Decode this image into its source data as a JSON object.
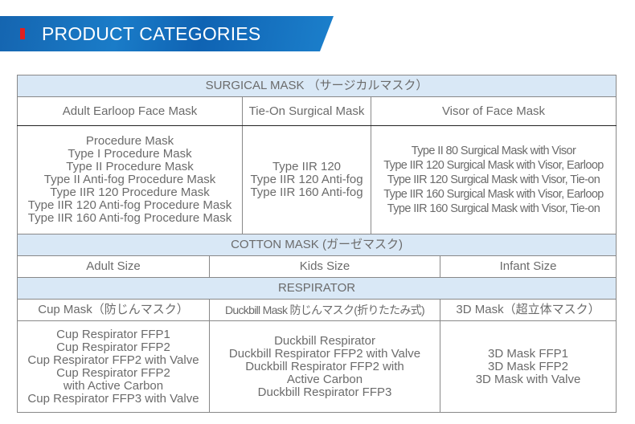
{
  "banner": {
    "title": "PRODUCT CATEGORIES",
    "accent": "#e02020",
    "background": "#1a72c0"
  },
  "surgical": {
    "header": "SURGICAL MASK （サージカルマスク）",
    "columns": [
      "Adult Earloop Face Mask",
      "Tie-On Surgical Mask",
      "Visor of Face Mask"
    ],
    "items": [
      [
        "Procedure Mask",
        "Type I Procedure Mask",
        "Type II Procedure Mask",
        "Type II Anti-fog Procedure Mask",
        "Type IIR 120 Procedure Mask",
        "Type IIR 120 Anti-fog Procedure Mask",
        "Type IIR 160 Anti-fog Procedure Mask"
      ],
      [
        "Type IIR 120",
        "Type IIR 120 Anti-fog",
        "Type IIR 160 Anti-fog"
      ],
      [
        "Type II 80 Surgical Mask with Visor",
        "Type IIR 120 Surgical Mask with Visor, Earloop",
        "Type IIR 120 Surgical Mask with Visor, Tie-on",
        "Type IIR 160 Surgical Mask with Visor, Earloop",
        "Type IIR 160 Surgical Mask with Visor, Tie-on"
      ]
    ]
  },
  "cotton": {
    "header": "COTTON MASK (ガーゼマスク)",
    "columns": [
      "Adult Size",
      "Kids Size",
      "Infant Size"
    ]
  },
  "respirator": {
    "header": "RESPIRATOR",
    "columns": [
      "Cup Mask（防じんマスク）",
      "Duckbill Mask 防じんマスク(折りたたみ式)",
      "3D Mask（超立体マスク）"
    ],
    "items": [
      [
        "Cup Respirator FFP1",
        "Cup Respirator FFP2",
        "Cup Respirator FFP2 with Valve",
        "Cup Respirator FFP2",
        "with Active Carbon",
        "Cup Respirator FFP3 with Valve"
      ],
      [
        "Duckbill Respirator",
        "Duckbill Respirator FFP2 with Valve",
        "Duckbill Respirator FFP2 with",
        "Active Carbon",
        "Duckbill Respirator FFP3"
      ],
      [
        "3D Mask FFP1",
        "3D Mask FFP2",
        "3D Mask with Valve"
      ]
    ]
  }
}
